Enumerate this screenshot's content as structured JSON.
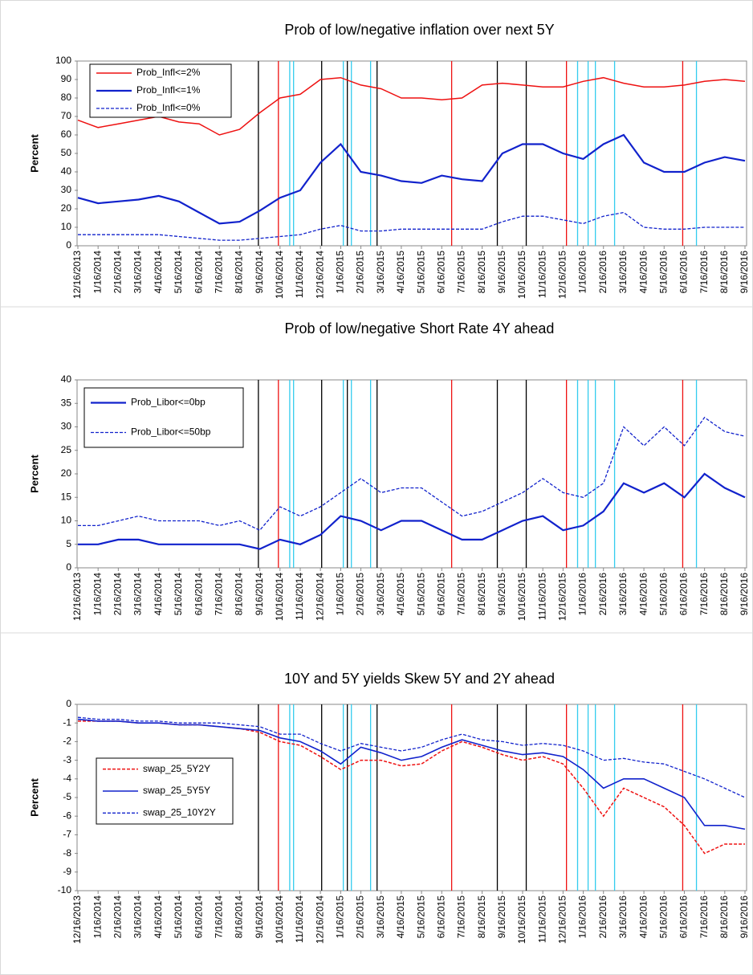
{
  "chart_data": [
    {
      "type": "line",
      "title": "Prob of low/negative inflation over next 5Y",
      "y_label": "Percent",
      "categories": [
        "12/16/2013",
        "1/16/2014",
        "2/16/2014",
        "3/16/2014",
        "4/16/2014",
        "5/16/2014",
        "6/16/2014",
        "7/16/2014",
        "8/16/2014",
        "9/16/2014",
        "10/16/2014",
        "11/16/2014",
        "12/16/2014",
        "1/16/2015",
        "2/16/2015",
        "3/16/2015",
        "4/16/2015",
        "5/16/2015",
        "6/16/2015",
        "7/16/2015",
        "8/16/2015",
        "9/16/2015",
        "10/16/2015",
        "11/16/2015",
        "12/16/2015",
        "1/16/2016",
        "2/16/2016",
        "3/16/2016",
        "4/16/2016",
        "5/16/2016",
        "6/16/2016",
        "7/16/2016",
        "8/16/2016",
        "9/16/2016"
      ],
      "ylim": [
        0,
        100
      ],
      "yticks": [
        0,
        10,
        20,
        30,
        40,
        50,
        60,
        70,
        80,
        90,
        100
      ],
      "legend": "top-left",
      "series": [
        {
          "name": "Prob_Infl<=2%",
          "color": "#ee1111",
          "style": "solid",
          "width": 1.5,
          "values": [
            68,
            64,
            66,
            68,
            70,
            67,
            66,
            60,
            63,
            72,
            80,
            82,
            90,
            91,
            87,
            85,
            80,
            80,
            79,
            80,
            87,
            88,
            87,
            86,
            86,
            89,
            91,
            88,
            86,
            86,
            87,
            89,
            90,
            89
          ]
        },
        {
          "name": "Prob_Infl<=1%",
          "color": "#1122cc",
          "style": "solid",
          "width": 2.2,
          "values": [
            26,
            23,
            24,
            25,
            27,
            24,
            18,
            12,
            13,
            19,
            26,
            30,
            45,
            55,
            40,
            38,
            35,
            34,
            38,
            36,
            35,
            50,
            55,
            55,
            50,
            47,
            55,
            60,
            45,
            40,
            40,
            45,
            48,
            46
          ]
        },
        {
          "name": "Prob_Infl<=0%",
          "color": "#1122cc",
          "style": "dashed",
          "width": 1.3,
          "values": [
            6,
            6,
            6,
            6,
            6,
            5,
            4,
            3,
            3,
            4,
            5,
            6,
            9,
            11,
            8,
            8,
            9,
            9,
            9,
            9,
            9,
            13,
            16,
            16,
            14,
            12,
            16,
            18,
            10,
            9,
            9,
            10,
            10,
            10
          ]
        }
      ]
    },
    {
      "type": "line",
      "title": "Prob of low/negative Short Rate 4Y ahead",
      "y_label": "Percent",
      "categories": [
        "12/16/2013",
        "1/16/2014",
        "2/16/2014",
        "3/16/2014",
        "4/16/2014",
        "5/16/2014",
        "6/16/2014",
        "7/16/2014",
        "8/16/2014",
        "9/16/2014",
        "10/16/2014",
        "11/16/2014",
        "12/16/2014",
        "1/16/2015",
        "2/16/2015",
        "3/16/2015",
        "4/16/2015",
        "5/16/2015",
        "6/16/2015",
        "7/16/2015",
        "8/16/2015",
        "9/16/2015",
        "10/16/2015",
        "11/16/2015",
        "12/16/2015",
        "1/16/2016",
        "2/16/2016",
        "3/16/2016",
        "4/16/2016",
        "5/16/2016",
        "6/16/2016",
        "7/16/2016",
        "8/16/2016",
        "9/16/2016"
      ],
      "ylim": [
        0,
        40
      ],
      "yticks": [
        0,
        5,
        10,
        15,
        20,
        25,
        30,
        35,
        40
      ],
      "legend": "top-left",
      "series": [
        {
          "name": "Prob_Libor<=0bp",
          "color": "#1122cc",
          "style": "solid",
          "width": 2.2,
          "values": [
            5,
            5,
            6,
            6,
            5,
            5,
            5,
            5,
            5,
            4,
            6,
            5,
            7,
            11,
            10,
            8,
            10,
            10,
            8,
            6,
            6,
            8,
            10,
            11,
            8,
            9,
            12,
            18,
            16,
            18,
            15,
            20,
            17,
            15
          ]
        },
        {
          "name": "Prob_Libor<=50bp",
          "color": "#1122cc",
          "style": "dashed",
          "width": 1.3,
          "values": [
            9,
            9,
            10,
            11,
            10,
            10,
            10,
            9,
            10,
            8,
            13,
            11,
            13,
            16,
            19,
            16,
            17,
            17,
            14,
            11,
            12,
            14,
            16,
            19,
            16,
            15,
            18,
            30,
            26,
            30,
            26,
            32,
            29,
            28
          ]
        }
      ]
    },
    {
      "type": "line",
      "title": "10Y and 5Y yields Skew 5Y and 2Y ahead",
      "y_label": "Percent",
      "categories": [
        "12/16/2013",
        "1/16/2014",
        "2/16/2014",
        "3/16/2014",
        "4/16/2014",
        "5/16/2014",
        "6/16/2014",
        "7/16/2014",
        "8/16/2014",
        "9/16/2014",
        "10/16/2014",
        "11/16/2014",
        "12/16/2014",
        "1/16/2015",
        "2/16/2015",
        "3/16/2015",
        "4/16/2015",
        "5/16/2015",
        "6/16/2015",
        "7/16/2015",
        "8/16/2015",
        "9/16/2015",
        "10/16/2015",
        "11/16/2015",
        "12/16/2015",
        "1/16/2016",
        "2/16/2016",
        "3/16/2016",
        "4/16/2016",
        "5/16/2016",
        "6/16/2016",
        "7/16/2016",
        "8/16/2016",
        "9/16/2016"
      ],
      "ylim": [
        -10,
        0
      ],
      "yticks": [
        -10,
        -9,
        -8,
        -7,
        -6,
        -5,
        -4,
        -3,
        -2,
        -1,
        0
      ],
      "legend": "middle-left",
      "series": [
        {
          "name": "swap_25_5Y2Y",
          "color": "#ee1111",
          "style": "dashed",
          "width": 1.5,
          "values": [
            -0.9,
            -0.9,
            -0.9,
            -1,
            -1,
            -1.1,
            -1.1,
            -1.2,
            -1.3,
            -1.5,
            -2,
            -2.2,
            -2.8,
            -3.5,
            -3,
            -3,
            -3.3,
            -3.2,
            -2.5,
            -2,
            -2.3,
            -2.7,
            -3,
            -2.8,
            -3.2,
            -4.5,
            -6,
            -4.5,
            -5,
            -5.5,
            -6.5,
            -8,
            -7.5,
            -7.5
          ]
        },
        {
          "name": "swap_25_5Y5Y",
          "color": "#1122cc",
          "style": "solid",
          "width": 1.6,
          "values": [
            -0.8,
            -0.9,
            -0.9,
            -1,
            -1,
            -1.1,
            -1.1,
            -1.2,
            -1.3,
            -1.4,
            -1.8,
            -2,
            -2.5,
            -3.2,
            -2.3,
            -2.6,
            -3,
            -2.8,
            -2.3,
            -1.9,
            -2.2,
            -2.5,
            -2.7,
            -2.6,
            -2.8,
            -3.5,
            -4.5,
            -4,
            -4,
            -4.5,
            -5,
            -6.5,
            -6.5,
            -6.7
          ]
        },
        {
          "name": "swap_25_10Y2Y",
          "color": "#1122cc",
          "style": "dashed",
          "width": 1.3,
          "values": [
            -0.7,
            -0.8,
            -0.8,
            -0.9,
            -0.9,
            -1,
            -1,
            -1,
            -1.1,
            -1.2,
            -1.6,
            -1.6,
            -2.1,
            -2.5,
            -2.1,
            -2.3,
            -2.5,
            -2.3,
            -1.9,
            -1.6,
            -1.9,
            -2,
            -2.2,
            -2.1,
            -2.2,
            -2.5,
            -3,
            -2.9,
            -3.1,
            -3.2,
            -3.6,
            -4,
            -4.5,
            -5
          ]
        }
      ]
    }
  ],
  "events": [
    {
      "position": 8.93,
      "color": "#000000"
    },
    {
      "position": 9.92,
      "color": "#ee1111"
    },
    {
      "position": 10.48,
      "color": "#33ccee"
    },
    {
      "position": 10.67,
      "color": "#33ccee"
    },
    {
      "position": 12.06,
      "color": "#000000"
    },
    {
      "position": 13.13,
      "color": "#33ccee"
    },
    {
      "position": 13.33,
      "color": "#000000"
    },
    {
      "position": 13.53,
      "color": "#33ccee"
    },
    {
      "position": 14.48,
      "color": "#33ccee"
    },
    {
      "position": 14.8,
      "color": "#000000"
    },
    {
      "position": 18.49,
      "color": "#ee1111"
    },
    {
      "position": 20.75,
      "color": "#000000"
    },
    {
      "position": 22.18,
      "color": "#000000"
    },
    {
      "position": 24.17,
      "color": "#ee1111"
    },
    {
      "position": 24.72,
      "color": "#33ccee"
    },
    {
      "position": 25.24,
      "color": "#33ccee"
    },
    {
      "position": 25.6,
      "color": "#33ccee"
    },
    {
      "position": 26.55,
      "color": "#33ccee"
    },
    {
      "position": 29.92,
      "color": "#ee1111"
    },
    {
      "position": 30.6,
      "color": "#33ccee"
    }
  ]
}
